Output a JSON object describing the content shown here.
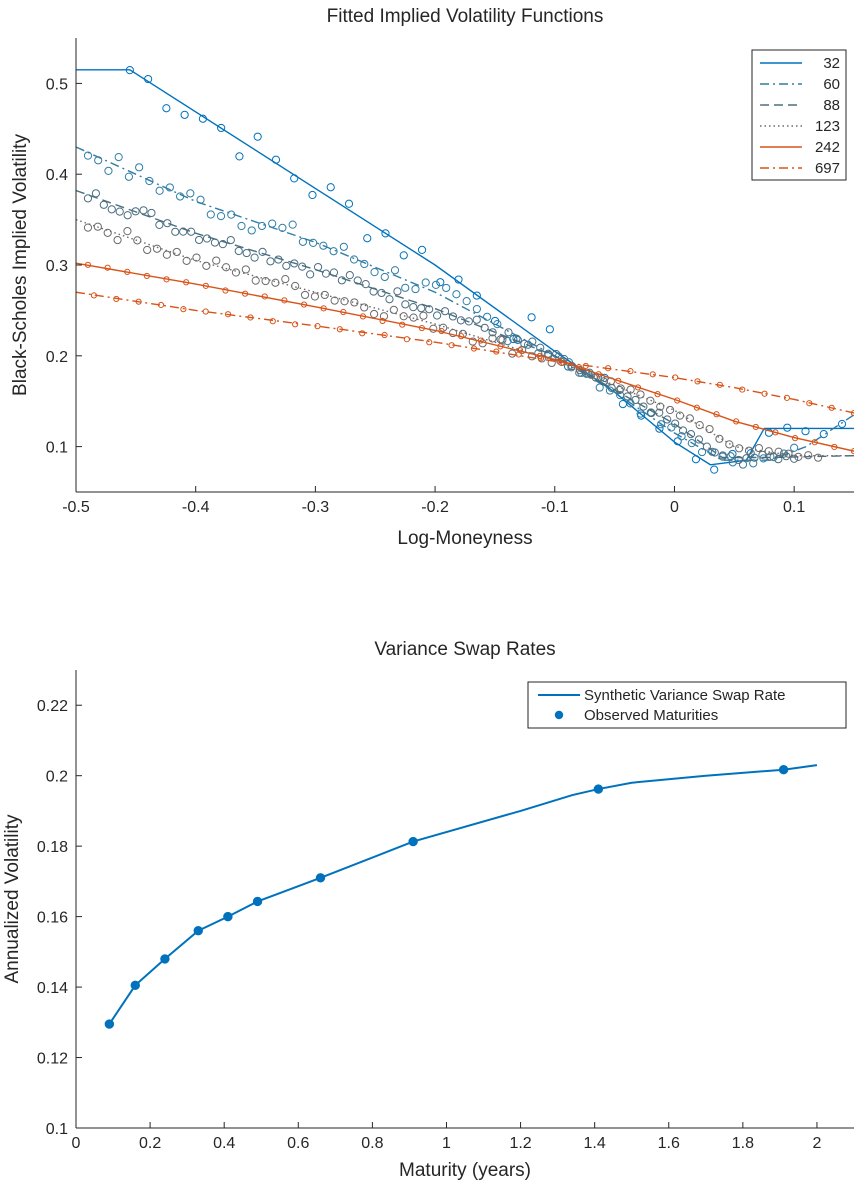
{
  "chart_data": [
    {
      "type": "scatter",
      "title": "Fitted Implied Volatility Functions",
      "xlabel": "Log-Moneyness",
      "ylabel": "Black-Scholes Implied Volatility",
      "xlim": [
        -0.5,
        0.15
      ],
      "ylim": [
        0.05,
        0.55
      ],
      "xticks": [
        "-0.5",
        "-0.4",
        "-0.3",
        "-0.2",
        "-0.1",
        "0",
        "0.1"
      ],
      "yticks": [
        "0.1",
        "0.2",
        "0.3",
        "0.4",
        "0.5"
      ],
      "legend_position": "top-right",
      "series": [
        {
          "name": "32",
          "color": "#0072BD",
          "style": "solid",
          "x": [
            -0.5,
            -0.455,
            -0.2,
            -0.1,
            -0.05,
            0.0,
            0.03,
            0.06,
            0.075,
            0.15
          ],
          "y": [
            0.515,
            0.515,
            0.3,
            0.205,
            0.16,
            0.105,
            0.08,
            0.085,
            0.12,
            0.12
          ]
        },
        {
          "name": "60",
          "color": "#2E7DA6",
          "style": "dashdot",
          "x": [
            -0.5,
            -0.4,
            -0.3,
            -0.2,
            -0.1,
            -0.05,
            0.0,
            0.04,
            0.08,
            0.11,
            0.15
          ],
          "y": [
            0.43,
            0.37,
            0.325,
            0.27,
            0.2,
            0.16,
            0.115,
            0.085,
            0.085,
            0.1,
            0.135
          ]
        },
        {
          "name": "88",
          "color": "#4A6E80",
          "style": "dashed",
          "x": [
            -0.5,
            -0.4,
            -0.3,
            -0.2,
            -0.1,
            0.0,
            0.04,
            0.08,
            0.15
          ],
          "y": [
            0.382,
            0.335,
            0.295,
            0.252,
            0.2,
            0.125,
            0.088,
            0.088,
            0.09
          ]
        },
        {
          "name": "123",
          "color": "#707070",
          "style": "dotted",
          "x": [
            -0.5,
            -0.4,
            -0.3,
            -0.2,
            -0.1,
            0.0,
            0.05,
            0.1,
            0.15
          ],
          "y": [
            0.35,
            0.305,
            0.27,
            0.235,
            0.195,
            0.14,
            0.1,
            0.09,
            0.09
          ]
        },
        {
          "name": "242",
          "color": "#D95319",
          "style": "solid",
          "x": [
            -0.5,
            -0.4,
            -0.3,
            -0.2,
            -0.1,
            0.0,
            0.05,
            0.1,
            0.15
          ],
          "y": [
            0.302,
            0.279,
            0.254,
            0.228,
            0.196,
            0.152,
            0.128,
            0.11,
            0.095
          ]
        },
        {
          "name": "697",
          "color": "#D95319",
          "style": "dashdot",
          "x": [
            -0.5,
            -0.4,
            -0.3,
            -0.2,
            -0.1,
            0.0,
            0.05,
            0.1,
            0.15
          ],
          "y": [
            0.27,
            0.25,
            0.233,
            0.215,
            0.194,
            0.176,
            0.165,
            0.152,
            0.137
          ]
        }
      ]
    },
    {
      "type": "line",
      "title": "Variance Swap Rates",
      "xlabel": "Maturity (years)",
      "ylabel": "Annualized Volatility",
      "xlim": [
        0,
        2.1
      ],
      "ylim": [
        0.1,
        0.23
      ],
      "xticks": [
        "0",
        "0.2",
        "0.4",
        "0.6",
        "0.8",
        "1",
        "1.2",
        "1.4",
        "1.6",
        "1.8",
        "2"
      ],
      "yticks": [
        "0.1",
        "0.12",
        "0.14",
        "0.16",
        "0.18",
        "0.2",
        "0.22"
      ],
      "legend_position": "top-right",
      "series": [
        {
          "name": "Synthetic Variance Swap Rate",
          "color": "#0072BD",
          "style": "solid",
          "x": [
            0.09,
            0.16,
            0.24,
            0.33,
            0.41,
            0.49,
            0.66,
            0.91,
            1.2,
            1.34,
            1.41,
            1.5,
            1.7,
            1.91,
            2.0
          ],
          "y": [
            0.1295,
            0.1405,
            0.148,
            0.156,
            0.16,
            0.1643,
            0.171,
            0.1813,
            0.19,
            0.1945,
            0.1962,
            0.198,
            0.2,
            0.2017,
            0.203
          ]
        },
        {
          "name": "Observed Maturities",
          "color": "#0072BD",
          "style": "markers",
          "x": [
            0.09,
            0.16,
            0.24,
            0.33,
            0.41,
            0.49,
            0.66,
            0.91,
            1.41,
            1.91
          ],
          "y": [
            0.1295,
            0.1405,
            0.148,
            0.156,
            0.16,
            0.1643,
            0.171,
            0.1813,
            0.1962,
            0.2017
          ]
        }
      ]
    }
  ]
}
